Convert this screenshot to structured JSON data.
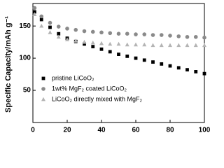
{
  "chart_data": {
    "type": "scatter",
    "y_label": "Specific Capacity/mAh g⁻¹",
    "x": [
      1,
      5,
      10,
      15,
      20,
      25,
      30,
      35,
      40,
      45,
      50,
      55,
      60,
      65,
      70,
      75,
      80,
      85,
      90,
      95,
      100
    ],
    "series": [
      {
        "name": "pristine LiCoO₂",
        "color": "#000000",
        "marker": "square",
        "values": [
          172,
          160,
          148,
          138,
          131,
          126,
          122,
          118,
          114,
          110,
          106,
          103,
          100,
          97,
          94,
          91,
          88,
          85,
          82,
          79,
          76
        ]
      },
      {
        "name": "1wt% MgF₂ coated LiCoO₂",
        "color": "#8a8a8a",
        "marker": "circle",
        "values": [
          178,
          165,
          155,
          149,
          146,
          144,
          142,
          141,
          140,
          139,
          138,
          138,
          137,
          137,
          136,
          136,
          135,
          134,
          133,
          133,
          132
        ]
      },
      {
        "name": "LiCoO₂ directly mixed with MgF₂",
        "color": "#b4b4b4",
        "marker": "triangle",
        "values": [
          168,
          150,
          140,
          133,
          129,
          127,
          125,
          124,
          123,
          122,
          122,
          121,
          121,
          121,
          120,
          120,
          120,
          120,
          120,
          120,
          120
        ]
      }
    ],
    "xlim": [
      0,
      100
    ],
    "xticks": [
      0,
      20,
      40,
      60,
      80,
      100
    ],
    "ylim": [
      0,
      185
    ],
    "yticks": [
      0,
      50,
      100,
      150
    ],
    "legend": "lower-left"
  }
}
